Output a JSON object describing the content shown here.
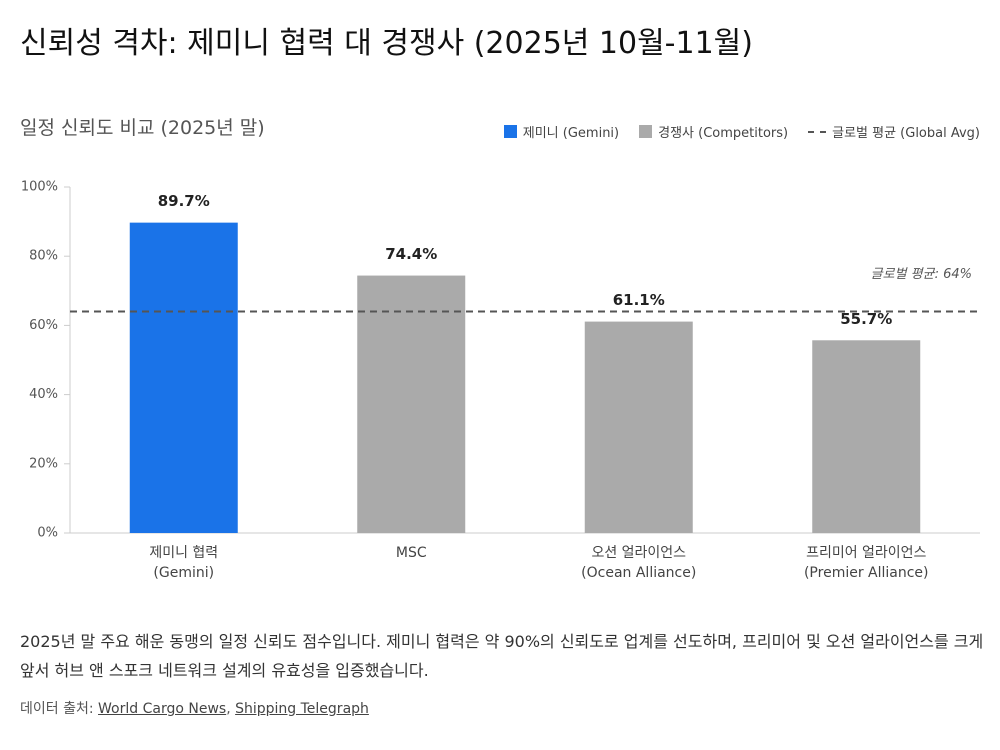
{
  "page_title": "신뢰성 격차: 제미니 협력 대 경쟁사 (2025년 10월-11월)",
  "chart_data": {
    "type": "bar",
    "title": "일정 신뢰도 비교 (2025년 말)",
    "categories": [
      "제미니 협력\n(Gemini)",
      "MSC",
      "오션 얼라이언스\n(Ocean Alliance)",
      "프리미어 얼라이언스\n(Premier Alliance)"
    ],
    "series": [
      {
        "name": "제미니 (Gemini)",
        "color": "#1a73e8",
        "values": [
          89.7,
          null,
          null,
          null
        ],
        "value_labels": [
          "89.7%",
          null,
          null,
          null
        ]
      },
      {
        "name": "경쟁사 (Competitors)",
        "color": "#aaaaaa",
        "values": [
          null,
          74.4,
          61.1,
          55.7
        ],
        "value_labels": [
          null,
          "74.4%",
          "61.1%",
          "55.7%"
        ]
      }
    ],
    "reference_line": {
      "name": "글로벌 평균 (Global Avg)",
      "value": 64,
      "label": "글로벌 평균: 64%",
      "color": "#555555"
    },
    "ylim": [
      0,
      100
    ],
    "yticks": [
      {
        "value": 0,
        "label": "0%"
      },
      {
        "value": 20,
        "label": "20%"
      },
      {
        "value": 40,
        "label": "40%"
      },
      {
        "value": 60,
        "label": "60%"
      },
      {
        "value": 80,
        "label": "80%"
      },
      {
        "value": 100,
        "label": "100%"
      }
    ],
    "grid": false,
    "legend": "top-right"
  },
  "description": "2025년 말 주요 해운 동맹의 일정 신뢰도 점수입니다. 제미니 협력은 약 90%의 신뢰도로 업계를 선도하며, 프리미어 및 오션 얼라이언스를 크게 앞서 허브 앤 스포크 네트워크 설계의 유효성을 입증했습니다.",
  "source": {
    "label": "데이터 출처:",
    "links": [
      "World Cargo News",
      "Shipping Telegraph"
    ],
    "separator": ", "
  }
}
